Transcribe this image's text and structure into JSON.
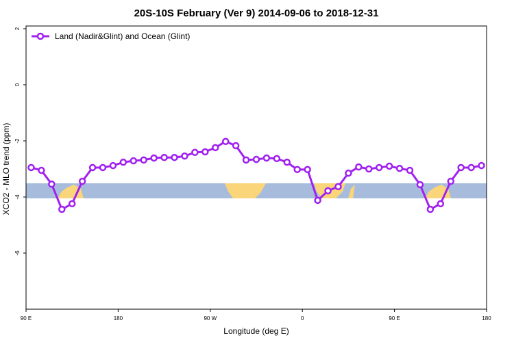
{
  "chart_data": {
    "type": "line",
    "title": "20S-10S February (Ver 9)   2014-09-06 to 2018-12-31",
    "x_label": "Longitude (deg E)",
    "y_label": "XCO2 - MLO trend (ppm)",
    "x": [
      95,
      105,
      115,
      125,
      135,
      145,
      155,
      165,
      175,
      185,
      195,
      205,
      215,
      225,
      235,
      245,
      255,
      265,
      275,
      285,
      295,
      305,
      315,
      325,
      335,
      345,
      355,
      365,
      375,
      385,
      395,
      405,
      415,
      425,
      435,
      445,
      455,
      465,
      475,
      485,
      495,
      505,
      515,
      525,
      535
    ],
    "series": [
      {
        "name": "Land (Nadir&Glint) and Ocean (Glint)",
        "color": "#a020f0",
        "values": [
          -2.95,
          -3.05,
          -3.54,
          -4.44,
          -4.24,
          -3.44,
          -2.95,
          -2.95,
          -2.88,
          -2.76,
          -2.71,
          -2.68,
          -2.61,
          -2.59,
          -2.59,
          -2.54,
          -2.41,
          -2.39,
          -2.24,
          -2.02,
          -2.17,
          -2.68,
          -2.66,
          -2.61,
          -2.63,
          -2.76,
          -3.02,
          -3.02,
          -4.12,
          -3.78,
          -3.63,
          -3.15,
          -2.93,
          -3.0,
          -2.95,
          -2.9,
          -2.98,
          -3.05,
          -3.56,
          -4.44,
          -4.24,
          -3.44,
          -2.95,
          -2.95,
          -2.88
        ]
      }
    ],
    "xlim": [
      90,
      540
    ],
    "xticks": [
      {
        "value": 90,
        "label": "90 E"
      },
      180,
      {
        "value": 270,
        "label": "90 W"
      },
      {
        "value": 360,
        "label": "0"
      },
      {
        "value": 450,
        "label": "90 E"
      },
      {
        "value": 540,
        "label": "180"
      }
    ],
    "ylim": [
      -8,
      2
    ],
    "yticks": [
      -6,
      -4,
      -2,
      0,
      2
    ],
    "legend": "top-left"
  }
}
